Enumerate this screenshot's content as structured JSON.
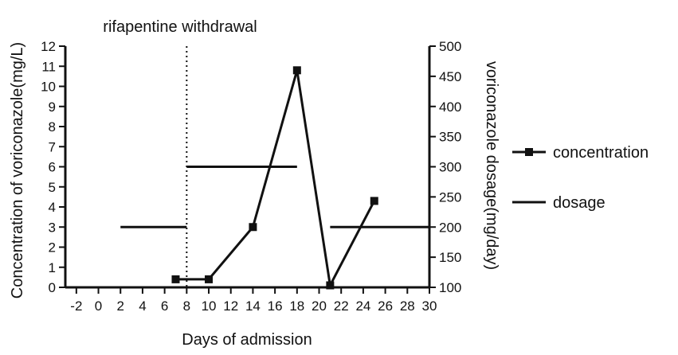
{
  "chart_data": {
    "type": "line",
    "xlabel": "Days of admission",
    "ylabel_left": "Concentration of voriconazole(mg/L)",
    "ylabel_right": "voriconazole dosage(mg/day)",
    "x_ticks": [
      "-2",
      "0",
      "2",
      "4",
      "6",
      "8",
      "10",
      "12",
      "14",
      "16",
      "18",
      "20",
      "22",
      "24",
      "26",
      "28",
      "30"
    ],
    "y_left_ticks": [
      "0",
      "1",
      "2",
      "3",
      "4",
      "5",
      "6",
      "7",
      "8",
      "9",
      "10",
      "11",
      "12"
    ],
    "y_right_ticks": [
      "100",
      "150",
      "200",
      "250",
      "300",
      "350",
      "400",
      "450",
      "500"
    ],
    "xlim": [
      -3,
      30
    ],
    "ylim_left": [
      0,
      12
    ],
    "ylim_right": [
      100,
      500
    ],
    "grid": false,
    "legend_position": "right",
    "series": [
      {
        "name": "concentration",
        "axis": "left",
        "marker": "square",
        "x": [
          7,
          10,
          14,
          18,
          21,
          25
        ],
        "y": [
          0.4,
          0.4,
          3.0,
          10.8,
          0.1,
          4.3
        ]
      },
      {
        "name": "dosage",
        "axis": "right",
        "marker": "none",
        "segments": [
          {
            "x": [
              2,
              8
            ],
            "y": [
              200,
              200
            ]
          },
          {
            "x": [
              8,
              18
            ],
            "y": [
              300,
              300
            ]
          },
          {
            "x": [
              21,
              30
            ],
            "y": [
              200,
              200
            ]
          }
        ]
      }
    ],
    "annotations": [
      {
        "text": "rifapentine withdrawal",
        "x": 8,
        "style": "dotted-vertical-line"
      }
    ],
    "line_color": "#111111"
  }
}
